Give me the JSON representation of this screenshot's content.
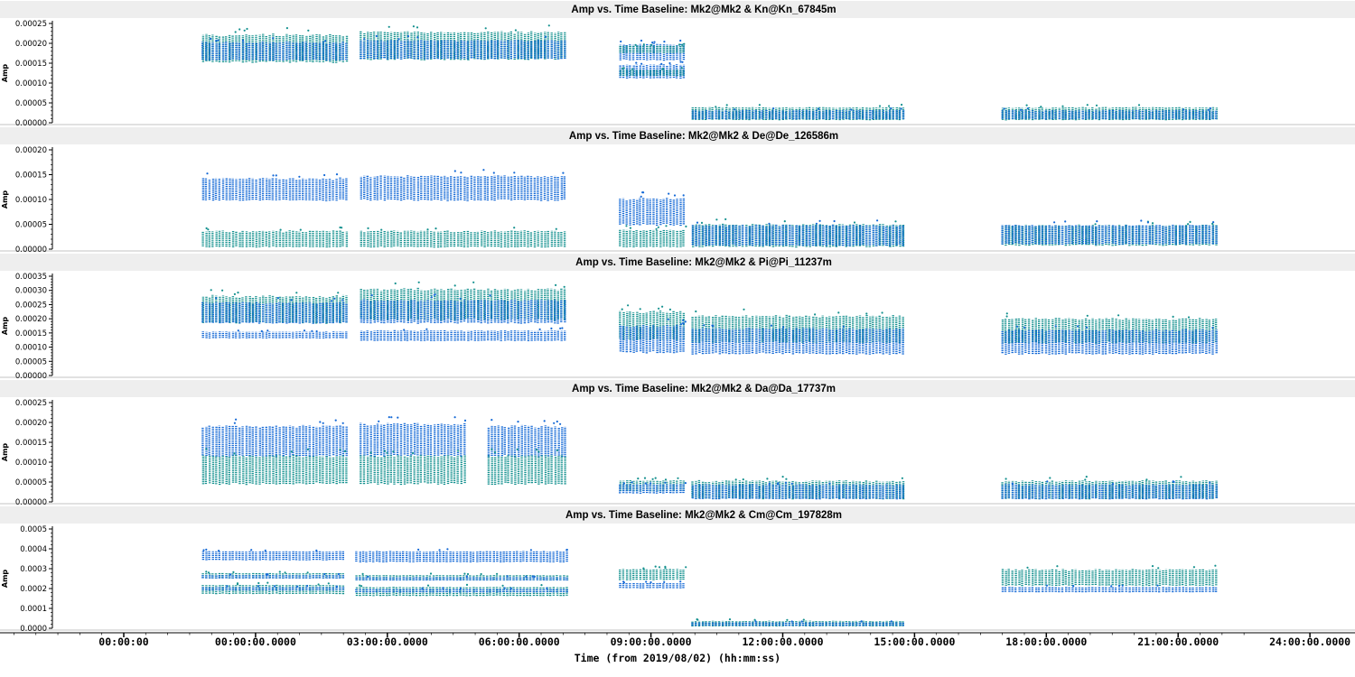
{
  "chart_data": {
    "type": "scatter",
    "xlabel": "Time (from 2019/08/02) (hh:mm:ss)",
    "x_unit": "hours",
    "xlim": [
      -5.5,
      25.5
    ],
    "x_ticks": [
      {
        "hour": 0,
        "label": "00:00:00"
      },
      {
        "hour": 3,
        "label": "00:00:00.0000"
      },
      {
        "hour": 6,
        "label": "03:00:00.0000"
      },
      {
        "hour": 9,
        "label": "06:00:00.0000"
      },
      {
        "hour": 12,
        "label": "09:00:00.0000"
      },
      {
        "hour": 15,
        "label": "12:00:00.0000"
      },
      {
        "hour": 18,
        "label": "15:00:00.0000"
      },
      {
        "hour": 21,
        "label": "18:00:00.0000"
      },
      {
        "hour": 24,
        "label": "21:00:00.0000"
      },
      {
        "hour": 27,
        "label": "24:00:00.0000"
      }
    ],
    "colors": {
      "blue": "#1469d6",
      "teal": "#14918f"
    },
    "panels": [
      {
        "title": "Amp vs. Time Baseline: Mk2@Mk2 & Kn@Kn_67845m",
        "ylabel": "Amp",
        "ylim": [
          0,
          0.00025
        ],
        "yticks": [
          "0.00000",
          "0.00005",
          "0.00010",
          "0.00015",
          "0.00020",
          "0.00025"
        ],
        "segments": [
          {
            "x": [
              1.8,
              5.1
            ],
            "bands": [
              {
                "color": "teal",
                "lo": 0.000148,
                "hi": 0.000225
              },
              {
                "color": "blue",
                "lo": 0.000155,
                "hi": 0.000205
              }
            ]
          },
          {
            "x": [
              5.4,
              10.1
            ],
            "bands": [
              {
                "color": "teal",
                "lo": 0.000155,
                "hi": 0.000232
              },
              {
                "color": "blue",
                "lo": 0.000158,
                "hi": 0.00021
              }
            ]
          },
          {
            "x": [
              11.3,
              12.8
            ],
            "bands": [
              {
                "color": "blue",
                "lo": 0.000155,
                "hi": 0.0002
              },
              {
                "color": "teal",
                "lo": 0.000175,
                "hi": 0.000195
              },
              {
                "color": "blue",
                "lo": 0.00011,
                "hi": 0.000148
              },
              {
                "color": "teal",
                "lo": 0.000118,
                "hi": 0.000135
              }
            ]
          },
          {
            "x": [
              12.95,
              17.8
            ],
            "bands": [
              {
                "color": "teal",
                "lo": 5e-06,
                "hi": 4e-05
              },
              {
                "color": "blue",
                "lo": 8e-06,
                "hi": 3.2e-05
              }
            ]
          },
          {
            "x": [
              20.0,
              24.9
            ],
            "bands": [
              {
                "color": "teal",
                "lo": 5e-06,
                "hi": 4e-05
              },
              {
                "color": "blue",
                "lo": 8e-06,
                "hi": 3.2e-05
              }
            ]
          }
        ]
      },
      {
        "title": "Amp vs. Time Baseline: Mk2@Mk2 & De@De_126586m",
        "ylabel": "Amp",
        "ylim": [
          0,
          0.0002
        ],
        "yticks": [
          "0.00000",
          "0.00005",
          "0.00010",
          "0.00015",
          "0.00020"
        ],
        "segments": [
          {
            "x": [
              1.8,
              5.1
            ],
            "bands": [
              {
                "color": "blue",
                "lo": 9.5e-05,
                "hi": 0.000145
              },
              {
                "color": "teal",
                "lo": 2e-06,
                "hi": 3.8e-05
              }
            ]
          },
          {
            "x": [
              5.4,
              10.1
            ],
            "bands": [
              {
                "color": "blue",
                "lo": 9.5e-05,
                "hi": 0.00015
              },
              {
                "color": "teal",
                "lo": 2e-06,
                "hi": 3.8e-05
              }
            ]
          },
          {
            "x": [
              11.3,
              12.8
            ],
            "bands": [
              {
                "color": "blue",
                "lo": 4.5e-05,
                "hi": 0.000105
              },
              {
                "color": "teal",
                "lo": 2e-06,
                "hi": 4e-05
              }
            ]
          },
          {
            "x": [
              12.95,
              17.8
            ],
            "bands": [
              {
                "color": "teal",
                "lo": 2e-06,
                "hi": 5.2e-05
              },
              {
                "color": "blue",
                "lo": 5e-06,
                "hi": 5e-05
              }
            ]
          },
          {
            "x": [
              20.0,
              24.9
            ],
            "bands": [
              {
                "color": "teal",
                "lo": 5e-06,
                "hi": 5e-05
              },
              {
                "color": "blue",
                "lo": 8e-06,
                "hi": 5e-05
              }
            ]
          }
        ]
      },
      {
        "title": "Amp vs. Time Baseline: Mk2@Mk2 & Pi@Pi_11237m",
        "ylabel": "Amp",
        "ylim": [
          0,
          0.00035
        ],
        "yticks": [
          "0.00000",
          "0.00005",
          "0.00010",
          "0.00015",
          "0.00020",
          "0.00025",
          "0.00030",
          "0.00035"
        ],
        "segments": [
          {
            "x": [
              1.8,
              5.1
            ],
            "bands": [
              {
                "color": "teal",
                "lo": 0.00018,
                "hi": 0.000285
              },
              {
                "color": "blue",
                "lo": 0.00018,
                "hi": 0.00026
              },
              {
                "color": "blue",
                "lo": 0.00013,
                "hi": 0.000155
              }
            ]
          },
          {
            "x": [
              5.4,
              10.1
            ],
            "bands": [
              {
                "color": "teal",
                "lo": 0.00019,
                "hi": 0.00031
              },
              {
                "color": "blue",
                "lo": 0.00018,
                "hi": 0.00027
              },
              {
                "color": "blue",
                "lo": 0.00012,
                "hi": 0.00016
              }
            ]
          },
          {
            "x": [
              11.3,
              12.8
            ],
            "bands": [
              {
                "color": "teal",
                "lo": 0.00012,
                "hi": 0.00023
              },
              {
                "color": "blue",
                "lo": 7.5e-05,
                "hi": 0.00018
              }
            ]
          },
          {
            "x": [
              12.95,
              17.8
            ],
            "bands": [
              {
                "color": "teal",
                "lo": 0.00011,
                "hi": 0.000215
              },
              {
                "color": "blue",
                "lo": 7e-05,
                "hi": 0.00017
              }
            ]
          },
          {
            "x": [
              20.0,
              24.9
            ],
            "bands": [
              {
                "color": "teal",
                "lo": 0.00011,
                "hi": 0.000205
              },
              {
                "color": "blue",
                "lo": 7e-05,
                "hi": 0.000165
              }
            ]
          }
        ]
      },
      {
        "title": "Amp vs. Time Baseline: Mk2@Mk2 & Da@Da_17737m",
        "ylabel": "Amp",
        "ylim": [
          0,
          0.00025
        ],
        "yticks": [
          "0.00000",
          "0.00005",
          "0.00010",
          "0.00015",
          "0.00020",
          "0.00025"
        ],
        "segments": [
          {
            "x": [
              1.8,
              5.1
            ],
            "bands": [
              {
                "color": "blue",
                "lo": 0.00011,
                "hi": 0.000195
              },
              {
                "color": "teal",
                "lo": 4e-05,
                "hi": 0.00012
              }
            ]
          },
          {
            "x": [
              5.4,
              7.8
            ],
            "bands": [
              {
                "color": "blue",
                "lo": 0.00011,
                "hi": 0.0002
              },
              {
                "color": "teal",
                "lo": 4e-05,
                "hi": 0.00012
              }
            ]
          },
          {
            "x": [
              8.3,
              10.1
            ],
            "bands": [
              {
                "color": "blue",
                "lo": 0.00011,
                "hi": 0.000195
              },
              {
                "color": "teal",
                "lo": 4e-05,
                "hi": 0.00012
              }
            ]
          },
          {
            "x": [
              11.3,
              12.8
            ],
            "bands": [
              {
                "color": "teal",
                "lo": 2.5e-05,
                "hi": 5.5e-05
              },
              {
                "color": "blue",
                "lo": 2e-05,
                "hi": 4.5e-05
              }
            ]
          },
          {
            "x": [
              12.95,
              17.8
            ],
            "bands": [
              {
                "color": "teal",
                "lo": 5e-06,
                "hi": 5.5e-05
              },
              {
                "color": "blue",
                "lo": 5e-06,
                "hi": 4.5e-05
              }
            ]
          },
          {
            "x": [
              20.0,
              24.9
            ],
            "bands": [
              {
                "color": "teal",
                "lo": 5e-06,
                "hi": 5.5e-05
              },
              {
                "color": "blue",
                "lo": 5e-06,
                "hi": 4.5e-05
              }
            ]
          }
        ]
      },
      {
        "title": "Amp vs. Time Baseline: Mk2@Mk2 & Cm@Cm_197828m",
        "ylabel": "Amp",
        "ylim": [
          0,
          0.0005
        ],
        "yticks": [
          "0.0000",
          "0.0001",
          "0.0002",
          "0.0003",
          "0.0004",
          "0.0005"
        ],
        "segments": [
          {
            "x": [
              1.8,
              5.0
            ],
            "bands": [
              {
                "color": "blue",
                "lo": 0.00034,
                "hi": 0.00039
              },
              {
                "color": "teal",
                "lo": 0.00025,
                "hi": 0.00028
              },
              {
                "color": "blue",
                "lo": 0.00025,
                "hi": 0.00027
              },
              {
                "color": "teal",
                "lo": 0.00017,
                "hi": 0.00022
              },
              {
                "color": "blue",
                "lo": 0.00019,
                "hi": 0.00021
              }
            ]
          },
          {
            "x": [
              5.3,
              10.1
            ],
            "bands": [
              {
                "color": "blue",
                "lo": 0.00033,
                "hi": 0.00039
              },
              {
                "color": "teal",
                "lo": 0.00024,
                "hi": 0.00027
              },
              {
                "color": "blue",
                "lo": 0.00024,
                "hi": 0.00026
              },
              {
                "color": "teal",
                "lo": 0.00016,
                "hi": 0.00021
              },
              {
                "color": "blue",
                "lo": 0.00018,
                "hi": 0.0002
              }
            ]
          },
          {
            "x": [
              11.3,
              12.8
            ],
            "bands": [
              {
                "color": "teal",
                "lo": 0.00024,
                "hi": 0.0003
              },
              {
                "color": "blue",
                "lo": 0.0002,
                "hi": 0.00023
              }
            ]
          },
          {
            "x": [
              12.95,
              17.8
            ],
            "bands": [
              {
                "color": "teal",
                "lo": 8e-06,
                "hi": 4e-05
              },
              {
                "color": "blue",
                "lo": 1.2e-05,
                "hi": 3.2e-05
              }
            ]
          },
          {
            "x": [
              20.0,
              24.9
            ],
            "bands": [
              {
                "color": "teal",
                "lo": 0.00021,
                "hi": 0.0003
              },
              {
                "color": "blue",
                "lo": 0.00018,
                "hi": 0.00021
              }
            ]
          }
        ]
      }
    ]
  }
}
